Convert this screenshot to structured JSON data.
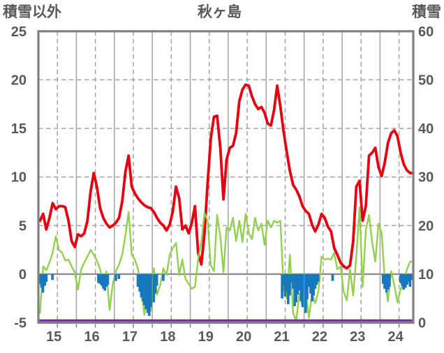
{
  "header": {
    "left_axis_title": "積雪以外",
    "chart_title": "秋ヶ島",
    "right_axis_title": "積雪"
  },
  "chart_data": {
    "type": "line",
    "title": "秋ヶ島",
    "grid": true,
    "legend": "none",
    "left_axis": {
      "title": "積雪以外",
      "min": -5,
      "max": 25,
      "ticks": [
        25,
        20,
        15,
        10,
        5,
        0,
        -5
      ]
    },
    "right_axis": {
      "title": "積雪",
      "min": 0,
      "max": 60,
      "ticks": [
        60,
        50,
        40,
        30,
        20,
        10,
        0
      ]
    },
    "x_axis": {
      "labels": [
        "15",
        "16",
        "17",
        "18",
        "19",
        "20",
        "21",
        "22",
        "23",
        "24"
      ],
      "start_year": 2015,
      "end_year_fraction": 2024.875,
      "year_gridline": "solid",
      "mid_year_gridline": "dashed",
      "label_position": "mid-year"
    },
    "colors": {
      "grid": "#a3a3a3",
      "frame": "#808080",
      "zero_line": "#8c8c8c",
      "text": "#595959"
    },
    "series": [
      {
        "name": "red-line",
        "type": "line",
        "axis": "left",
        "color": "#e60012",
        "width": 3.8,
        "start": 2015,
        "interval_months": 1,
        "values": [
          5.5,
          6.2,
          4.6,
          5.8,
          7.3,
          6.7,
          7.0,
          7.0,
          6.9,
          5.5,
          3.4,
          2.8,
          4.1,
          3.9,
          4.2,
          5.5,
          8.5,
          10.4,
          9.0,
          6.8,
          5.8,
          5.2,
          4.8,
          5.0,
          5.3,
          5.8,
          7.5,
          10.5,
          12.2,
          9.0,
          8.3,
          7.8,
          7.4,
          7.1,
          6.9,
          6.8,
          6.4,
          5.8,
          5.3,
          5.0,
          4.5,
          5.1,
          6.5,
          9.0,
          7.8,
          4.6,
          5.0,
          4.2,
          5.3,
          7.0,
          2.2,
          1.0,
          4.2,
          9.4,
          14.0,
          16.2,
          16.3,
          13.0,
          7.7,
          11.8,
          13.0,
          13.2,
          14.5,
          17.8,
          19.0,
          19.5,
          19.4,
          18.3,
          17.5,
          17.0,
          17.2,
          16.6,
          15.5,
          15.3,
          16.9,
          19.4,
          17.2,
          14.7,
          12.6,
          10.6,
          9.2,
          8.7,
          8.0,
          7.0,
          6.5,
          6.2,
          5.1,
          4.4,
          5.1,
          6.2,
          5.8,
          4.9,
          4.4,
          2.7,
          2.0,
          1.2,
          0.8,
          0.6,
          0.9,
          3.4,
          9.0,
          9.6,
          5.5,
          7.0,
          12.2,
          12.5,
          13.0,
          11.0,
          10.1,
          11.5,
          13.5,
          14.5,
          14.8,
          14.2,
          12.5,
          11.3,
          10.7,
          10.4,
          10.4
        ]
      },
      {
        "name": "green-line",
        "type": "line",
        "axis": "left",
        "color": "#92d050",
        "width": 2.4,
        "start": 2015,
        "interval_months": 1,
        "values": [
          -4.0,
          0.8,
          0.4,
          1.2,
          2.2,
          3.9,
          2.5,
          2.2,
          1.4,
          1.5,
          0.8,
          0.2,
          -1.6,
          0.5,
          1.2,
          1.8,
          2.5,
          2.0,
          1.4,
          0.5,
          -0.9,
          0.3,
          -3.7,
          -1.0,
          0.3,
          1.0,
          2.0,
          4.0,
          6.4,
          2.0,
          1.5,
          0.5,
          -1.5,
          -4.2,
          -2.0,
          -3.8,
          0.6,
          -2.1,
          -1.1,
          0.6,
          -0.1,
          2.0,
          2.7,
          3.2,
          -0.1,
          1.5,
          -0.5,
          -1.0,
          -1.5,
          -1.3,
          1.5,
          3.3,
          6.3,
          5.5,
          0.9,
          0.3,
          6.1,
          3.9,
          0.2,
          4.8,
          4.5,
          5.8,
          3.4,
          5.5,
          3.3,
          6.2,
          4.2,
          3.6,
          5.8,
          4.5,
          5.2,
          3.0,
          5.5,
          4.8,
          5.5,
          5.3,
          5.5,
          -1.5,
          -2.5,
          2.0,
          -4.0,
          -4.8,
          -2.0,
          -3.3,
          -1.5,
          -4.5,
          -2.0,
          -3.0,
          -1.8,
          1.8,
          1.5,
          1.6,
          1.5,
          2.2,
          0.5,
          0.8,
          -1.8,
          -2.7,
          0.5,
          -2.2,
          1.8,
          6.9,
          -1.3,
          4.5,
          6.1,
          3.3,
          1.3,
          5.2,
          4.2,
          -0.6,
          -2.8,
          0.3,
          -1.1,
          -2.9,
          -1.5,
          -1.0,
          0.5,
          1.3,
          1.3
        ]
      },
      {
        "name": "blue-bars",
        "type": "bar",
        "axis": "left",
        "color": "#1878be",
        "bar_width": 3.6,
        "points": [
          [
            2015.04,
            -1.0
          ],
          [
            2015.08,
            -1.4
          ],
          [
            2015.12,
            -1.9
          ],
          [
            2015.17,
            -1.2
          ],
          [
            2015.21,
            -0.8
          ],
          [
            2015.37,
            -0.6
          ],
          [
            2016.58,
            -0.9
          ],
          [
            2016.62,
            -1.0
          ],
          [
            2016.67,
            -1.2
          ],
          [
            2016.71,
            -1.5
          ],
          [
            2016.75,
            -1.7
          ],
          [
            2016.79,
            -1.3
          ],
          [
            2016.83,
            -1.1
          ],
          [
            2017.04,
            -0.7
          ],
          [
            2017.12,
            -0.5
          ],
          [
            2017.62,
            -1.3
          ],
          [
            2017.67,
            -1.8
          ],
          [
            2017.71,
            -2.4
          ],
          [
            2017.75,
            -2.8
          ],
          [
            2017.79,
            -3.2
          ],
          [
            2017.83,
            -3.6
          ],
          [
            2017.88,
            -4.0
          ],
          [
            2017.92,
            -4.3
          ],
          [
            2017.96,
            -3.4
          ],
          [
            2018.04,
            -2.9
          ],
          [
            2018.08,
            -2.0
          ],
          [
            2018.12,
            -1.2
          ],
          [
            2018.29,
            -0.7
          ],
          [
            2021.42,
            -2.5
          ],
          [
            2021.46,
            -1.2
          ],
          [
            2021.5,
            -2.3
          ],
          [
            2021.54,
            -1.8
          ],
          [
            2021.58,
            -3.1
          ],
          [
            2021.62,
            -2.2
          ],
          [
            2021.67,
            -0.9
          ],
          [
            2021.71,
            -1.5
          ],
          [
            2021.75,
            -3.3
          ],
          [
            2021.79,
            -2.9
          ],
          [
            2021.83,
            -2.1
          ],
          [
            2021.88,
            -1.7
          ],
          [
            2021.92,
            -2.8
          ],
          [
            2021.96,
            -3.4
          ],
          [
            2022.04,
            -4.0
          ],
          [
            2022.08,
            -2.6
          ],
          [
            2022.12,
            -1.3
          ],
          [
            2022.17,
            -2.0
          ],
          [
            2022.21,
            -2.8
          ],
          [
            2022.25,
            -2.2
          ],
          [
            2022.29,
            -1.5
          ],
          [
            2022.33,
            -1.1
          ],
          [
            2022.37,
            -0.8
          ],
          [
            2022.75,
            -0.7
          ],
          [
            2024.08,
            -1.0
          ],
          [
            2024.12,
            -1.5
          ],
          [
            2024.17,
            -1.9
          ],
          [
            2024.21,
            -1.6
          ],
          [
            2024.25,
            -1.3
          ],
          [
            2024.54,
            -0.9
          ],
          [
            2024.58,
            -1.2
          ],
          [
            2024.62,
            -1.6
          ],
          [
            2024.67,
            -1.4
          ],
          [
            2024.71,
            -1.1
          ],
          [
            2024.75,
            -0.8
          ],
          [
            2024.79,
            -1.3
          ],
          [
            2024.83,
            -0.6
          ]
        ]
      },
      {
        "name": "purple-snow-line",
        "type": "constant-line",
        "axis": "right",
        "color": "#7030a0",
        "width": 3.2,
        "constant_value": 0
      }
    ]
  }
}
